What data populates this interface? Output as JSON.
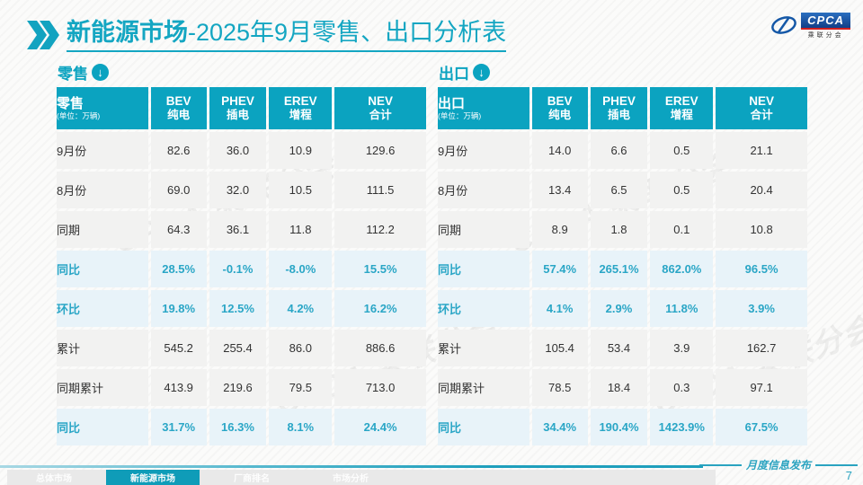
{
  "header": {
    "title_bold": "新能源市场",
    "title_rest": "-2025年9月零售、出口分析表",
    "logo": {
      "swirl": "e",
      "name": "CPCA",
      "sub": "乘联分会"
    }
  },
  "tables": [
    {
      "name": "零售",
      "unit": "(单位：万辆)",
      "arrow_icon": "↓",
      "columns": [
        {
          "en": "BEV",
          "zh": "纯电"
        },
        {
          "en": "PHEV",
          "zh": "插电"
        },
        {
          "en": "EREV",
          "zh": "增程"
        },
        {
          "en": "NEV",
          "zh": "合计"
        }
      ],
      "rows": [
        {
          "label": "9月份",
          "type": "normal",
          "values": [
            "82.6",
            "36.0",
            "10.9",
            "129.6"
          ]
        },
        {
          "label": "8月份",
          "type": "normal",
          "values": [
            "69.0",
            "32.0",
            "10.5",
            "111.5"
          ]
        },
        {
          "label": "同期",
          "type": "normal",
          "values": [
            "64.3",
            "36.1",
            "11.8",
            "112.2"
          ]
        },
        {
          "label": "同比",
          "type": "percent",
          "values": [
            "28.5%",
            "-0.1%",
            "-8.0%",
            "15.5%"
          ]
        },
        {
          "label": "环比",
          "type": "percent",
          "values": [
            "19.8%",
            "12.5%",
            "4.2%",
            "16.2%"
          ]
        },
        {
          "label": "累计",
          "type": "normal",
          "values": [
            "545.2",
            "255.4",
            "86.0",
            "886.6"
          ]
        },
        {
          "label": "同期累计",
          "type": "normal",
          "values": [
            "413.9",
            "219.6",
            "79.5",
            "713.0"
          ]
        },
        {
          "label": "同比",
          "type": "percent",
          "values": [
            "31.7%",
            "16.3%",
            "8.1%",
            "24.4%"
          ]
        }
      ]
    },
    {
      "name": "出口",
      "unit": "(单位：万辆)",
      "arrow_icon": "↓",
      "columns": [
        {
          "en": "BEV",
          "zh": "纯电"
        },
        {
          "en": "PHEV",
          "zh": "插电"
        },
        {
          "en": "EREV",
          "zh": "增程"
        },
        {
          "en": "NEV",
          "zh": "合计"
        }
      ],
      "rows": [
        {
          "label": "9月份",
          "type": "normal",
          "values": [
            "14.0",
            "6.6",
            "0.5",
            "21.1"
          ]
        },
        {
          "label": "8月份",
          "type": "normal",
          "values": [
            "13.4",
            "6.5",
            "0.5",
            "20.4"
          ]
        },
        {
          "label": "同期",
          "type": "normal",
          "values": [
            "8.9",
            "1.8",
            "0.1",
            "10.8"
          ]
        },
        {
          "label": "同比",
          "type": "percent",
          "values": [
            "57.4%",
            "265.1%",
            "862.0%",
            "96.5%"
          ]
        },
        {
          "label": "环比",
          "type": "percent",
          "values": [
            "4.1%",
            "2.9%",
            "11.8%",
            "3.9%"
          ]
        },
        {
          "label": "累计",
          "type": "normal",
          "values": [
            "105.4",
            "53.4",
            "3.9",
            "162.7"
          ]
        },
        {
          "label": "同期累计",
          "type": "normal",
          "values": [
            "78.5",
            "18.4",
            "0.3",
            "97.1"
          ]
        },
        {
          "label": "同比",
          "type": "percent",
          "values": [
            "34.4%",
            "190.4%",
            "1423.9%",
            "67.5%"
          ]
        }
      ]
    }
  ],
  "footer": {
    "tabs": [
      {
        "label": "总体市场",
        "active": false
      },
      {
        "label": "新能源市场",
        "active": true
      },
      {
        "label": "厂商排名",
        "active": false
      },
      {
        "label": "市场分析",
        "active": false
      }
    ],
    "publication": "月度信息发布",
    "page": "7"
  },
  "watermark": "CPCA 乘联分会",
  "colors": {
    "teal_header": "#0ba3c0",
    "teal_title": "#14a6c2",
    "percent_text": "#2aa6c6",
    "active_tab": "#0f9cb8"
  }
}
